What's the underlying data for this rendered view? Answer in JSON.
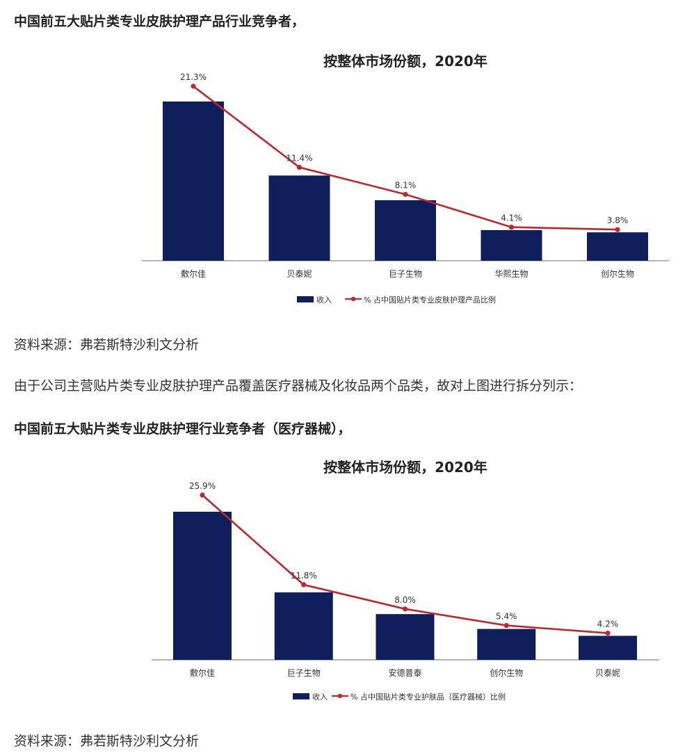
{
  "sections": [
    {
      "heading": "中国前五大贴片类专业皮肤护理产品行业竞争者，",
      "source": "资料来源：弗若斯特沙利文分析"
    },
    {
      "heading": "中国前五大贴片类专业皮肤护理行业竞争者（医疗器械），",
      "source": "资料来源：弗若斯特沙利文分析"
    }
  ],
  "paragraph": "由于公司主营贴片类专业皮肤护理产品覆盖医疗器械及化妆品两个品类，故对上图进行拆分列示：",
  "colors": {
    "bar": "#0f1f5c",
    "line": "#c0272d"
  },
  "chart_data": [
    {
      "type": "bar",
      "title": "按整体市场份额，2020年",
      "categories": [
        "敷尔佳",
        "贝泰妮",
        "巨子生物",
        "华熙生物",
        "创尔生物"
      ],
      "series": [
        {
          "name": "收入",
          "type": "bar",
          "values": [
            21.3,
            11.4,
            8.1,
            4.1,
            3.8
          ]
        },
        {
          "name": "% 占中国贴片类专业皮肤护理产品比例",
          "type": "line",
          "values": [
            21.3,
            11.4,
            8.1,
            4.1,
            3.8
          ],
          "labels": [
            "21.3%",
            "11.4%",
            "8.1%",
            "4.1%",
            "3.8%"
          ]
        }
      ],
      "legend": "bottom"
    },
    {
      "type": "bar",
      "title": "按整体市场份额，2020年",
      "categories": [
        "敷尔佳",
        "巨子生物",
        "安德普泰",
        "创尔生物",
        "贝泰妮"
      ],
      "series": [
        {
          "name": "收入",
          "type": "bar",
          "values": [
            25.9,
            11.8,
            8.0,
            5.4,
            4.2
          ]
        },
        {
          "name": "% 占中国贴片类专业护肤品（医疗器械）比例",
          "type": "line",
          "values": [
            25.9,
            11.8,
            8.0,
            5.4,
            4.2
          ],
          "labels": [
            "25.9%",
            "11.8%",
            "8.0%",
            "5.4%",
            "4.2%"
          ]
        }
      ],
      "legend": "bottom"
    }
  ]
}
